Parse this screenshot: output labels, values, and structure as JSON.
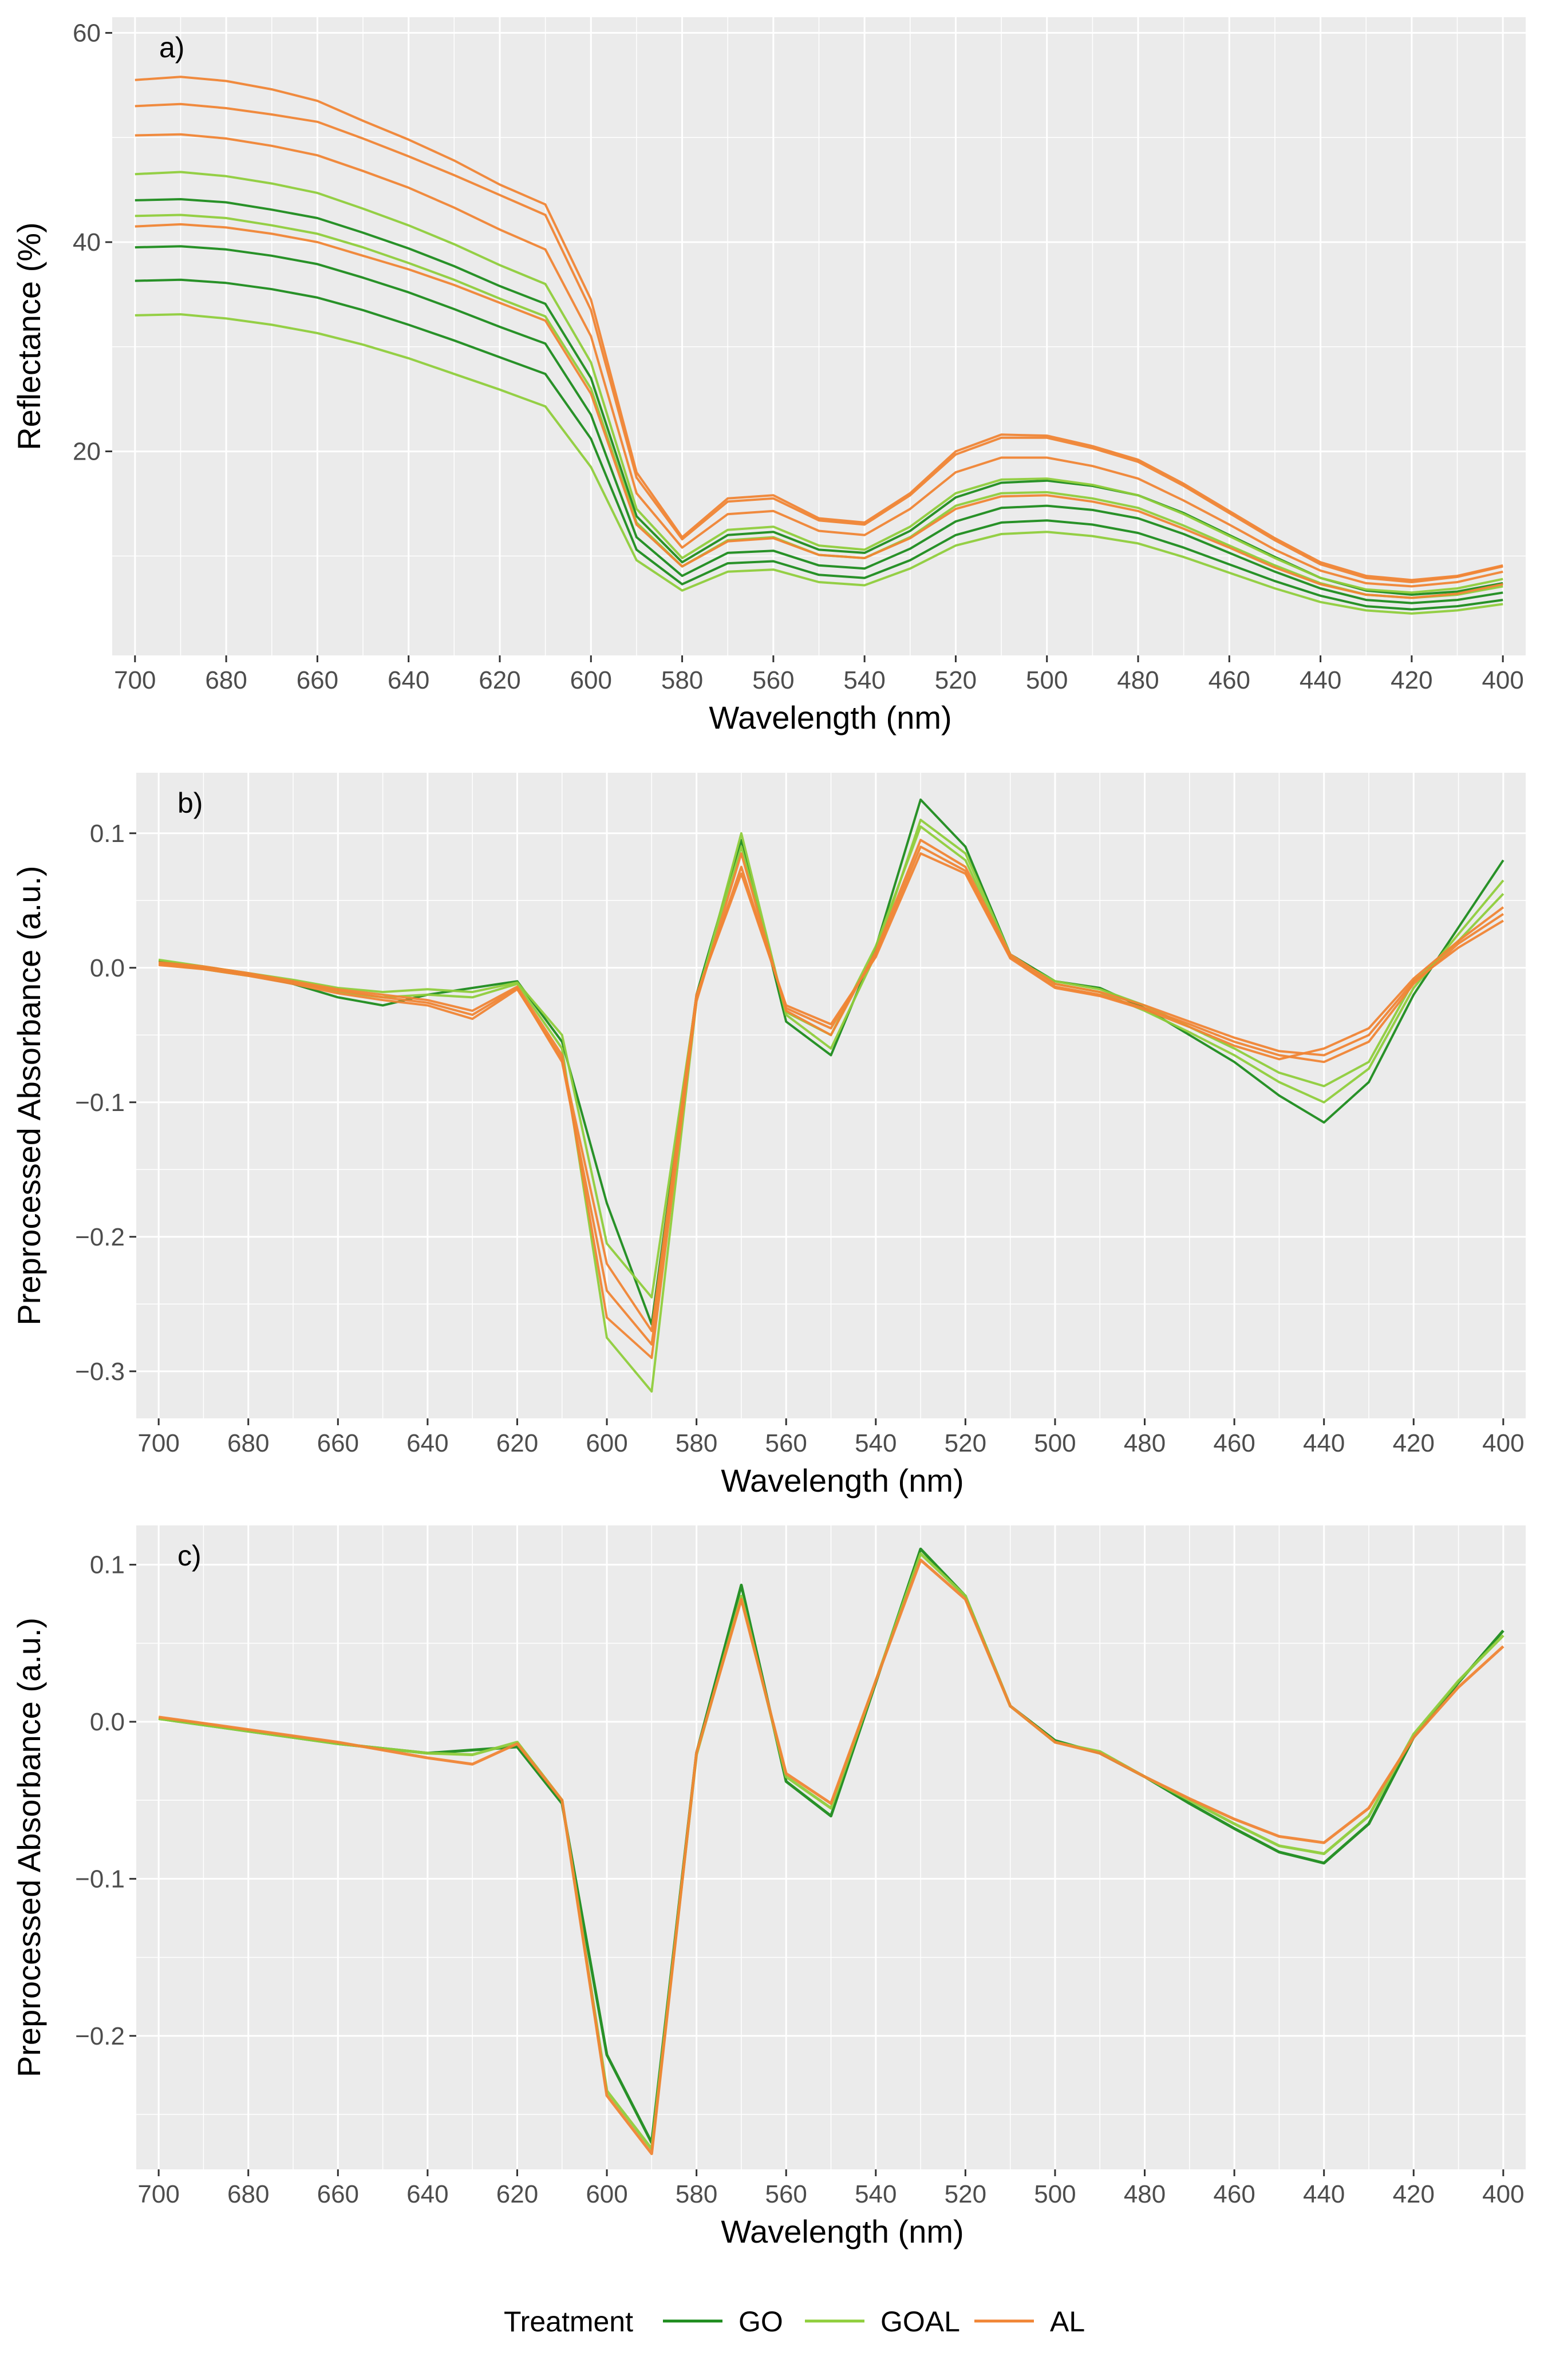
{
  "chart_data": [
    {
      "type": "line",
      "tag": "a)",
      "xlabel": "Wavelength (nm)",
      "ylabel": "Reflectance (%)",
      "x_reversed": true,
      "xlim": [
        395,
        705
      ],
      "ylim": [
        0.5,
        61.5
      ],
      "x_ticks": [
        700,
        680,
        660,
        640,
        620,
        600,
        580,
        560,
        540,
        520,
        500,
        480,
        460,
        440,
        420,
        400
      ],
      "y_ticks": [
        20,
        40,
        60
      ],
      "grid": true,
      "x": [
        700,
        690,
        680,
        670,
        660,
        650,
        640,
        630,
        620,
        610,
        600,
        590,
        580,
        570,
        560,
        550,
        540,
        530,
        520,
        510,
        500,
        490,
        480,
        470,
        460,
        450,
        440,
        430,
        420,
        410,
        400
      ],
      "series": [
        {
          "group": "AL",
          "values": [
            55.5,
            55.8,
            55.4,
            54.6,
            53.5,
            51.6,
            49.8,
            47.8,
            45.5,
            43.6,
            34.5,
            18.0,
            11.8,
            15.5,
            15.8,
            13.6,
            13.2,
            16.0,
            20.0,
            21.6,
            21.5,
            20.5,
            19.2,
            16.9,
            14.3,
            11.7,
            9.4,
            8.1,
            7.7,
            8.1,
            9.1
          ]
        },
        {
          "group": "AL",
          "values": [
            53.0,
            53.2,
            52.8,
            52.2,
            51.5,
            49.9,
            48.2,
            46.4,
            44.5,
            42.6,
            33.5,
            17.5,
            11.6,
            15.2,
            15.5,
            13.4,
            13.0,
            15.8,
            19.7,
            21.3,
            21.3,
            20.3,
            19.0,
            16.7,
            14.1,
            11.5,
            9.2,
            7.9,
            7.5,
            8.0,
            9.0
          ]
        },
        {
          "group": "AL",
          "values": [
            50.2,
            50.3,
            49.9,
            49.2,
            48.3,
            46.8,
            45.2,
            43.3,
            41.2,
            39.3,
            31.0,
            16.0,
            10.8,
            14.0,
            14.3,
            12.4,
            12.0,
            14.5,
            18.0,
            19.4,
            19.4,
            18.6,
            17.4,
            15.3,
            13.0,
            10.6,
            8.6,
            7.4,
            7.1,
            7.5,
            8.5
          ]
        },
        {
          "group": "GOAL",
          "values": [
            46.5,
            46.7,
            46.3,
            45.6,
            44.7,
            43.2,
            41.6,
            39.8,
            37.8,
            36.0,
            28.5,
            14.5,
            9.8,
            12.5,
            12.8,
            11.0,
            10.6,
            12.8,
            16.0,
            17.3,
            17.4,
            16.8,
            15.8,
            14.0,
            11.9,
            9.8,
            7.9,
            6.8,
            6.5,
            6.9,
            7.8
          ]
        },
        {
          "group": "GO",
          "values": [
            44.0,
            44.1,
            43.8,
            43.1,
            42.3,
            40.9,
            39.4,
            37.7,
            35.8,
            34.1,
            27.0,
            13.8,
            9.4,
            12.0,
            12.3,
            10.6,
            10.3,
            12.4,
            15.6,
            17.0,
            17.2,
            16.7,
            15.8,
            14.1,
            12.0,
            9.9,
            7.9,
            6.7,
            6.3,
            6.6,
            7.4
          ]
        },
        {
          "group": "GOAL",
          "values": [
            42.5,
            42.6,
            42.3,
            41.6,
            40.8,
            39.5,
            38.0,
            36.4,
            34.6,
            32.9,
            26.0,
            13.2,
            9.0,
            11.5,
            11.8,
            10.1,
            9.8,
            11.8,
            14.8,
            16.0,
            16.1,
            15.5,
            14.6,
            12.9,
            11.0,
            9.1,
            7.4,
            6.3,
            6.0,
            6.3,
            7.1
          ]
        },
        {
          "group": "AL",
          "values": [
            41.5,
            41.7,
            41.4,
            40.8,
            40.0,
            38.7,
            37.4,
            35.9,
            34.2,
            32.5,
            25.5,
            13.0,
            9.0,
            11.4,
            11.7,
            10.1,
            9.8,
            11.7,
            14.5,
            15.7,
            15.8,
            15.2,
            14.3,
            12.6,
            10.8,
            8.9,
            7.3,
            6.3,
            6.0,
            6.4,
            7.3
          ]
        },
        {
          "group": "GO",
          "values": [
            39.5,
            39.6,
            39.3,
            38.7,
            37.9,
            36.6,
            35.2,
            33.6,
            31.9,
            30.3,
            23.5,
            11.8,
            8.1,
            10.3,
            10.5,
            9.1,
            8.8,
            10.7,
            13.3,
            14.6,
            14.8,
            14.4,
            13.6,
            12.1,
            10.3,
            8.5,
            6.9,
            5.8,
            5.5,
            5.8,
            6.5
          ]
        },
        {
          "group": "GO",
          "values": [
            36.3,
            36.4,
            36.1,
            35.5,
            34.7,
            33.5,
            32.1,
            30.6,
            29.0,
            27.4,
            21.2,
            10.6,
            7.3,
            9.3,
            9.5,
            8.2,
            7.9,
            9.6,
            12.0,
            13.2,
            13.4,
            13.0,
            12.2,
            10.8,
            9.2,
            7.6,
            6.2,
            5.2,
            4.9,
            5.2,
            5.8
          ]
        },
        {
          "group": "GOAL",
          "values": [
            33.0,
            33.1,
            32.7,
            32.1,
            31.3,
            30.2,
            28.9,
            27.4,
            25.9,
            24.3,
            18.5,
            9.6,
            6.7,
            8.5,
            8.7,
            7.5,
            7.2,
            8.8,
            11.0,
            12.1,
            12.3,
            11.9,
            11.2,
            9.9,
            8.4,
            6.9,
            5.6,
            4.8,
            4.5,
            4.8,
            5.4
          ]
        }
      ]
    },
    {
      "type": "line",
      "tag": "b)",
      "xlabel": "Wavelength (nm)",
      "ylabel": "Preprocessed Absorbance (a.u.)",
      "x_reversed": true,
      "xlim": [
        395,
        705
      ],
      "ylim": [
        -0.335,
        0.145
      ],
      "x_ticks": [
        700,
        680,
        660,
        640,
        620,
        600,
        580,
        560,
        540,
        520,
        500,
        480,
        460,
        440,
        420,
        400
      ],
      "y_ticks": [
        -0.3,
        -0.2,
        -0.1,
        0.0,
        0.1
      ],
      "y_tick_labels": [
        "−0.3",
        "−0.2",
        "−0.1",
        "0.0",
        "0.1"
      ],
      "grid": true,
      "x": [
        700,
        690,
        680,
        670,
        660,
        650,
        640,
        630,
        620,
        610,
        600,
        590,
        580,
        570,
        560,
        550,
        540,
        530,
        520,
        510,
        500,
        490,
        480,
        470,
        460,
        450,
        440,
        430,
        420,
        410,
        400
      ],
      "series": [
        {
          "group": "GO",
          "values": [
            0.005,
            0.0,
            -0.005,
            -0.012,
            -0.022,
            -0.028,
            -0.02,
            -0.015,
            -0.01,
            -0.055,
            -0.175,
            -0.265,
            -0.02,
            0.095,
            -0.04,
            -0.065,
            0.015,
            0.125,
            0.09,
            0.01,
            -0.01,
            -0.015,
            -0.03,
            -0.05,
            -0.07,
            -0.095,
            -0.115,
            -0.085,
            -0.02,
            0.03,
            0.08
          ]
        },
        {
          "group": "GOAL",
          "values": [
            0.003,
            -0.001,
            -0.006,
            -0.01,
            -0.018,
            -0.022,
            -0.02,
            -0.022,
            -0.012,
            -0.06,
            -0.275,
            -0.315,
            -0.025,
            0.1,
            -0.035,
            -0.06,
            0.01,
            0.11,
            0.085,
            0.01,
            -0.012,
            -0.018,
            -0.032,
            -0.048,
            -0.065,
            -0.085,
            -0.1,
            -0.075,
            -0.015,
            0.025,
            0.065
          ]
        },
        {
          "group": "GOAL",
          "values": [
            0.006,
            0.001,
            -0.004,
            -0.009,
            -0.015,
            -0.018,
            -0.016,
            -0.018,
            -0.011,
            -0.05,
            -0.205,
            -0.245,
            -0.022,
            0.09,
            -0.033,
            -0.05,
            0.016,
            0.105,
            0.08,
            0.008,
            -0.01,
            -0.016,
            -0.028,
            -0.044,
            -0.06,
            -0.078,
            -0.088,
            -0.07,
            -0.01,
            0.02,
            0.055
          ]
        },
        {
          "group": "AL",
          "values": [
            0.004,
            0.001,
            -0.004,
            -0.01,
            -0.016,
            -0.02,
            -0.024,
            -0.032,
            -0.014,
            -0.065,
            -0.26,
            -0.29,
            -0.025,
            0.085,
            -0.032,
            -0.05,
            0.012,
            0.095,
            0.075,
            0.01,
            -0.012,
            -0.018,
            -0.028,
            -0.04,
            -0.052,
            -0.062,
            -0.065,
            -0.05,
            -0.01,
            0.015,
            0.035
          ]
        },
        {
          "group": "AL",
          "values": [
            0.003,
            0.0,
            -0.005,
            -0.011,
            -0.017,
            -0.022,
            -0.026,
            -0.035,
            -0.015,
            -0.07,
            -0.24,
            -0.28,
            -0.022,
            0.075,
            -0.03,
            -0.045,
            0.01,
            0.09,
            0.072,
            0.008,
            -0.014,
            -0.02,
            -0.03,
            -0.042,
            -0.055,
            -0.065,
            -0.07,
            -0.055,
            -0.012,
            0.018,
            0.04
          ]
        },
        {
          "group": "AL",
          "values": [
            0.002,
            -0.001,
            -0.006,
            -0.012,
            -0.019,
            -0.024,
            -0.028,
            -0.038,
            -0.016,
            -0.068,
            -0.22,
            -0.27,
            -0.02,
            0.07,
            -0.028,
            -0.042,
            0.008,
            0.085,
            0.07,
            0.007,
            -0.015,
            -0.021,
            -0.031,
            -0.044,
            -0.058,
            -0.068,
            -0.06,
            -0.045,
            -0.008,
            0.02,
            0.045
          ]
        }
      ]
    },
    {
      "type": "line",
      "tag": "c)",
      "xlabel": "Wavelength (nm)",
      "ylabel": "Preprocessed Absorbance (a.u.)",
      "x_reversed": true,
      "xlim": [
        395,
        705
      ],
      "ylim": [
        -0.285,
        0.125
      ],
      "x_ticks": [
        700,
        680,
        660,
        640,
        620,
        600,
        580,
        560,
        540,
        520,
        500,
        480,
        460,
        440,
        420,
        400
      ],
      "y_ticks": [
        -0.2,
        -0.1,
        0.0,
        0.1
      ],
      "y_tick_labels": [
        "−0.2",
        "−0.1",
        "0.0",
        "0.1"
      ],
      "grid": true,
      "x": [
        700,
        690,
        680,
        670,
        660,
        650,
        640,
        630,
        620,
        610,
        600,
        590,
        580,
        570,
        560,
        550,
        540,
        530,
        520,
        510,
        500,
        490,
        480,
        470,
        460,
        450,
        440,
        430,
        420,
        410,
        400
      ],
      "series": [
        {
          "group": "GO",
          "values": [
            0.002,
            -0.002,
            -0.006,
            -0.01,
            -0.014,
            -0.017,
            -0.02,
            -0.018,
            -0.016,
            -0.052,
            -0.212,
            -0.268,
            -0.02,
            0.087,
            -0.038,
            -0.06,
            0.025,
            0.11,
            0.08,
            0.01,
            -0.012,
            -0.02,
            -0.035,
            -0.052,
            -0.068,
            -0.083,
            -0.09,
            -0.065,
            -0.01,
            0.025,
            0.058
          ]
        },
        {
          "group": "GOAL",
          "values": [
            0.002,
            -0.002,
            -0.006,
            -0.01,
            -0.014,
            -0.017,
            -0.02,
            -0.021,
            -0.013,
            -0.05,
            -0.235,
            -0.272,
            -0.021,
            0.08,
            -0.035,
            -0.055,
            0.026,
            0.107,
            0.08,
            0.01,
            -0.013,
            -0.019,
            -0.035,
            -0.05,
            -0.065,
            -0.079,
            -0.084,
            -0.06,
            -0.008,
            0.026,
            0.055
          ]
        },
        {
          "group": "AL",
          "values": [
            0.003,
            -0.001,
            -0.005,
            -0.009,
            -0.013,
            -0.018,
            -0.023,
            -0.027,
            -0.014,
            -0.05,
            -0.238,
            -0.275,
            -0.02,
            0.078,
            -0.033,
            -0.052,
            0.026,
            0.103,
            0.078,
            0.01,
            -0.013,
            -0.02,
            -0.035,
            -0.049,
            -0.062,
            -0.073,
            -0.077,
            -0.055,
            -0.01,
            0.022,
            0.048
          ]
        }
      ]
    }
  ],
  "legend": {
    "title": "Treatment",
    "placement": "bottom",
    "items": [
      {
        "label": "GO",
        "key": "GO"
      },
      {
        "label": "GOAL",
        "key": "GOAL"
      },
      {
        "label": "AL",
        "key": "AL"
      }
    ]
  },
  "colors": {
    "GO": "#1e8c1e",
    "GOAL": "#8fce3c",
    "AL": "#f08535",
    "panel_bg": "#ebebeb",
    "grid": "#ffffff"
  }
}
